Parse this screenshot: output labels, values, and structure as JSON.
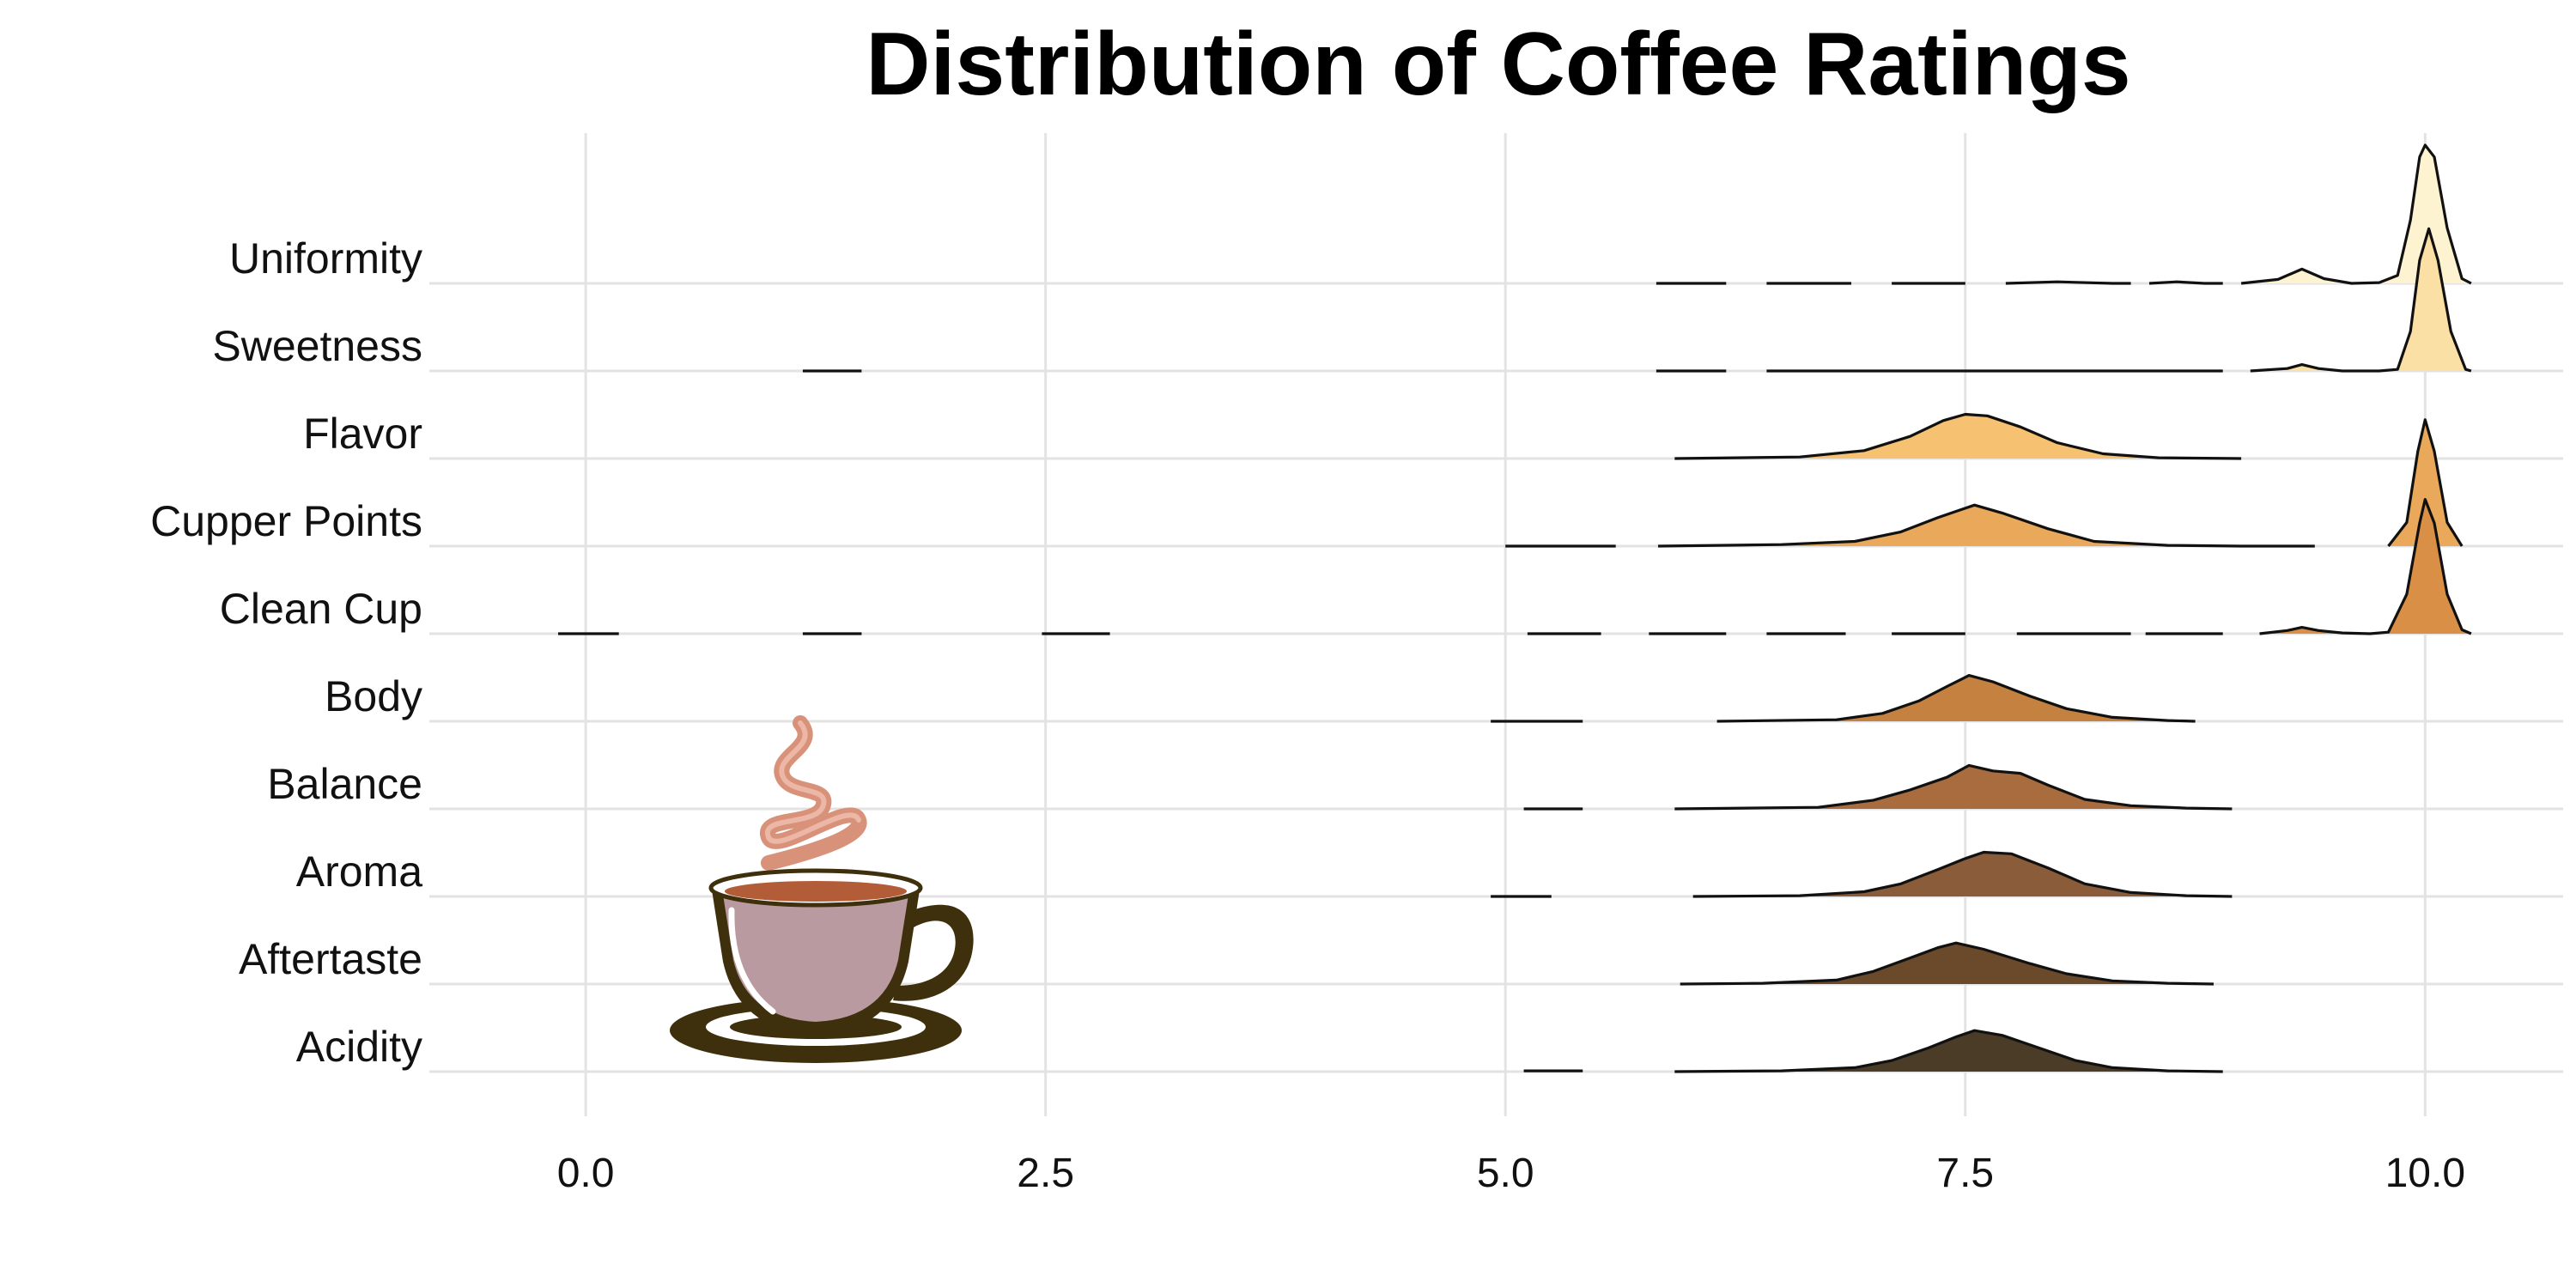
{
  "chart_data": {
    "type": "ridgeline",
    "title": "Distribution of Coffee Ratings",
    "xlabel": "",
    "ylabel": "",
    "xlim": [
      -0.85,
      10.75
    ],
    "x_ticks": [
      "0.0",
      "2.5",
      "5.0",
      "7.5",
      "10.0"
    ],
    "x_tick_values": [
      0,
      2.5,
      5,
      7.5,
      10
    ],
    "grid": true,
    "legend": "none",
    "categories": [
      "Acidity",
      "Aftertaste",
      "Aroma",
      "Balance",
      "Body",
      "Clean Cup",
      "Cupper Points",
      "Flavor",
      "Sweetness",
      "Uniformity"
    ],
    "series": [
      {
        "name": "Acidity",
        "color": "#4a3c27",
        "segments": [
          [
            [
              5.1,
              0.01
            ],
            [
              5.42,
              0.01
            ]
          ],
          [
            [
              5.92,
              0.0
            ],
            [
              6.5,
              0.01
            ],
            [
              6.9,
              0.05
            ],
            [
              7.1,
              0.14
            ],
            [
              7.3,
              0.3
            ],
            [
              7.45,
              0.44
            ],
            [
              7.55,
              0.52
            ],
            [
              7.7,
              0.46
            ],
            [
              7.9,
              0.3
            ],
            [
              8.1,
              0.14
            ],
            [
              8.3,
              0.05
            ],
            [
              8.6,
              0.01
            ],
            [
              8.9,
              0.0
            ]
          ]
        ]
      },
      {
        "name": "Aftertaste",
        "color": "#6b4a2c",
        "segments": [
          [
            [
              5.95,
              0.0
            ],
            [
              6.4,
              0.01
            ],
            [
              6.8,
              0.05
            ],
            [
              7.0,
              0.16
            ],
            [
              7.2,
              0.33
            ],
            [
              7.35,
              0.46
            ],
            [
              7.45,
              0.52
            ],
            [
              7.6,
              0.44
            ],
            [
              7.85,
              0.26
            ],
            [
              8.05,
              0.13
            ],
            [
              8.3,
              0.04
            ],
            [
              8.6,
              0.01
            ],
            [
              8.85,
              0.0
            ]
          ]
        ]
      },
      {
        "name": "Aroma",
        "color": "#8b5c3a",
        "segments": [
          [
            [
              4.92,
              0.0
            ],
            [
              5.25,
              0.0
            ]
          ],
          [
            [
              6.02,
              0.0
            ],
            [
              6.6,
              0.01
            ],
            [
              6.95,
              0.06
            ],
            [
              7.15,
              0.16
            ],
            [
              7.35,
              0.34
            ],
            [
              7.5,
              0.48
            ],
            [
              7.6,
              0.56
            ],
            [
              7.75,
              0.54
            ],
            [
              7.95,
              0.36
            ],
            [
              8.15,
              0.16
            ],
            [
              8.4,
              0.05
            ],
            [
              8.7,
              0.01
            ],
            [
              8.95,
              0.0
            ]
          ]
        ]
      },
      {
        "name": "Balance",
        "color": "#a86c3e",
        "segments": [
          [
            [
              5.1,
              0.0
            ],
            [
              5.42,
              0.0
            ]
          ],
          [
            [
              5.92,
              0.0
            ],
            [
              6.7,
              0.02
            ],
            [
              7.0,
              0.11
            ],
            [
              7.2,
              0.24
            ],
            [
              7.4,
              0.4
            ],
            [
              7.52,
              0.55
            ],
            [
              7.65,
              0.48
            ],
            [
              7.8,
              0.45
            ],
            [
              7.95,
              0.3
            ],
            [
              8.15,
              0.12
            ],
            [
              8.4,
              0.04
            ],
            [
              8.7,
              0.01
            ],
            [
              8.95,
              0.0
            ]
          ]
        ]
      },
      {
        "name": "Body",
        "color": "#c4813f",
        "segments": [
          [
            [
              4.92,
              0.0
            ],
            [
              5.42,
              0.0
            ]
          ],
          [
            [
              6.15,
              0.0
            ],
            [
              6.8,
              0.02
            ],
            [
              7.05,
              0.1
            ],
            [
              7.25,
              0.26
            ],
            [
              7.4,
              0.44
            ],
            [
              7.52,
              0.58
            ],
            [
              7.65,
              0.5
            ],
            [
              7.85,
              0.32
            ],
            [
              8.05,
              0.16
            ],
            [
              8.3,
              0.05
            ],
            [
              8.6,
              0.01
            ],
            [
              8.75,
              0.0
            ]
          ]
        ]
      },
      {
        "name": "Clean Cup",
        "color": "#d98f45",
        "segments": [
          [
            [
              -0.15,
              0.0
            ],
            [
              0.18,
              0.0
            ]
          ],
          [
            [
              1.18,
              0.0
            ],
            [
              1.5,
              0.0
            ]
          ],
          [
            [
              2.48,
              0.0
            ],
            [
              2.85,
              0.0
            ]
          ],
          [
            [
              5.12,
              0.0
            ],
            [
              5.52,
              0.0
            ]
          ],
          [
            [
              5.78,
              0.0
            ],
            [
              6.2,
              0.0
            ]
          ],
          [
            [
              6.42,
              0.0
            ],
            [
              6.85,
              0.0
            ]
          ],
          [
            [
              7.1,
              0.0
            ],
            [
              7.5,
              0.0
            ]
          ],
          [
            [
              7.78,
              0.0
            ],
            [
              8.4,
              0.0
            ]
          ],
          [
            [
              8.48,
              0.0
            ],
            [
              8.9,
              0.0
            ]
          ],
          [
            [
              9.1,
              0.0
            ],
            [
              9.25,
              0.04
            ],
            [
              9.33,
              0.08
            ],
            [
              9.42,
              0.04
            ],
            [
              9.55,
              0.01
            ],
            [
              9.7,
              0.0
            ],
            [
              9.8,
              0.02
            ],
            [
              9.9,
              0.5
            ],
            [
              9.97,
              1.4
            ],
            [
              10.0,
              1.7
            ],
            [
              10.05,
              1.4
            ],
            [
              10.12,
              0.5
            ],
            [
              10.2,
              0.05
            ],
            [
              10.25,
              0.0
            ]
          ]
        ]
      },
      {
        "name": "Cupper Points",
        "color": "#e9a85a",
        "segments": [
          [
            [
              5.0,
              0.0
            ],
            [
              5.6,
              0.0
            ]
          ],
          [
            [
              5.83,
              0.0
            ],
            [
              6.5,
              0.02
            ],
            [
              6.9,
              0.06
            ],
            [
              7.15,
              0.18
            ],
            [
              7.35,
              0.36
            ],
            [
              7.55,
              0.52
            ],
            [
              7.7,
              0.42
            ],
            [
              7.95,
              0.22
            ],
            [
              8.2,
              0.06
            ],
            [
              8.6,
              0.01
            ],
            [
              9.0,
              0.0
            ],
            [
              9.4,
              0.0
            ]
          ],
          [
            [
              9.8,
              0.0
            ],
            [
              9.9,
              0.3
            ],
            [
              9.96,
              1.2
            ],
            [
              10.0,
              1.6
            ],
            [
              10.05,
              1.2
            ],
            [
              10.12,
              0.3
            ],
            [
              10.2,
              0.0
            ]
          ]
        ]
      },
      {
        "name": "Flavor",
        "color": "#f6c271",
        "segments": [
          [
            [
              5.92,
              0.0
            ],
            [
              6.6,
              0.02
            ],
            [
              6.95,
              0.1
            ],
            [
              7.2,
              0.28
            ],
            [
              7.38,
              0.48
            ],
            [
              7.5,
              0.56
            ],
            [
              7.62,
              0.54
            ],
            [
              7.8,
              0.4
            ],
            [
              8.0,
              0.2
            ],
            [
              8.25,
              0.06
            ],
            [
              8.55,
              0.01
            ],
            [
              9.0,
              0.0
            ]
          ]
        ]
      },
      {
        "name": "Sweetness",
        "color": "#fbe0a6",
        "segments": [
          [
            [
              1.18,
              0.0
            ],
            [
              1.5,
              0.0
            ]
          ],
          [
            [
              5.82,
              0.0
            ],
            [
              6.2,
              0.0
            ]
          ],
          [
            [
              6.42,
              0.0
            ],
            [
              7.2,
              0.0
            ],
            [
              8.0,
              0.0
            ],
            [
              8.9,
              0.0
            ]
          ],
          [
            [
              9.05,
              0.0
            ],
            [
              9.25,
              0.03
            ],
            [
              9.33,
              0.08
            ],
            [
              9.42,
              0.03
            ],
            [
              9.55,
              0.0
            ],
            [
              9.75,
              0.0
            ],
            [
              9.85,
              0.02
            ],
            [
              9.92,
              0.5
            ],
            [
              9.97,
              1.4
            ],
            [
              10.02,
              1.8
            ],
            [
              10.07,
              1.4
            ],
            [
              10.14,
              0.5
            ],
            [
              10.22,
              0.02
            ],
            [
              10.25,
              0.0
            ]
          ]
        ]
      },
      {
        "name": "Uniformity",
        "color": "#fdf3d0",
        "segments": [
          [
            [
              5.82,
              0.0
            ],
            [
              6.2,
              0.0
            ]
          ],
          [
            [
              6.42,
              0.0
            ],
            [
              6.88,
              0.0
            ]
          ],
          [
            [
              7.1,
              0.0
            ],
            [
              7.5,
              0.0
            ]
          ],
          [
            [
              7.72,
              0.0
            ],
            [
              8.0,
              0.02
            ],
            [
              8.3,
              0.0
            ],
            [
              8.4,
              0.0
            ]
          ],
          [
            [
              8.5,
              0.0
            ],
            [
              8.65,
              0.02
            ],
            [
              8.8,
              0.0
            ],
            [
              8.9,
              0.0
            ]
          ],
          [
            [
              9.0,
              0.0
            ],
            [
              9.2,
              0.05
            ],
            [
              9.33,
              0.18
            ],
            [
              9.45,
              0.06
            ],
            [
              9.6,
              0.0
            ],
            [
              9.75,
              0.01
            ],
            [
              9.85,
              0.1
            ],
            [
              9.92,
              0.8
            ],
            [
              9.97,
              1.6
            ],
            [
              10.0,
              1.75
            ],
            [
              10.05,
              1.6
            ],
            [
              10.12,
              0.7
            ],
            [
              10.2,
              0.06
            ],
            [
              10.25,
              0.0
            ]
          ]
        ]
      }
    ]
  },
  "icon": {
    "name": "coffee-cup-icon",
    "steam_color": "#d9927a",
    "cup_outline_color": "#3e2f0d",
    "cup_fill_color": "#b99aa0",
    "coffee_color": "#b25c38"
  }
}
